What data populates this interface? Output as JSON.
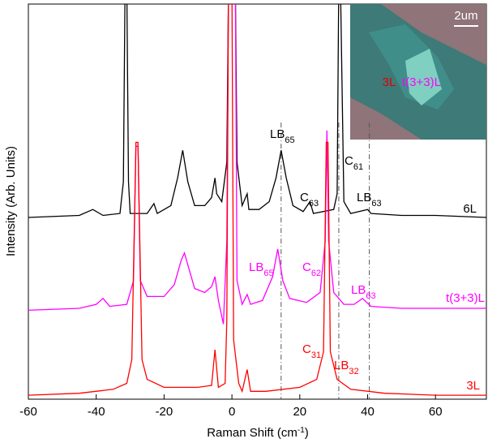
{
  "chart_data": {
    "type": "line",
    "xlabel": {
      "main": "Raman Shift (cm",
      "sup": "-1",
      "tail": ")"
    },
    "ylabel": "Intensity (Arb. Units)",
    "xlim": [
      -60,
      75
    ],
    "ylim": [
      0,
      100
    ],
    "xticks": [
      -60,
      -40,
      -20,
      0,
      20,
      40,
      60
    ],
    "reference_lines": [
      14.5,
      31.5,
      40.5
    ],
    "series": [
      {
        "name": "6L",
        "color": "#000000",
        "x": [
          -60,
          -45,
          -41,
          -38,
          -33,
          -32,
          -31.5,
          -31,
          -30.5,
          -30,
          -25,
          -23,
          -22,
          -18,
          -16,
          -14.5,
          -13,
          -11,
          -8,
          -6,
          -5,
          -4.5,
          -3,
          -1.5,
          -1,
          1,
          1.5,
          3,
          4.5,
          5,
          8,
          11,
          13,
          14.5,
          16,
          18,
          21,
          23,
          24,
          30,
          31,
          31.5,
          32,
          33,
          35,
          40,
          41,
          50,
          60,
          75
        ],
        "values": [
          46,
          46.5,
          48,
          46.5,
          47,
          55,
          105,
          105,
          55,
          47,
          47,
          49.5,
          47,
          49,
          56,
          63,
          55,
          49,
          49,
          51,
          56,
          52,
          50,
          60,
          105,
          105,
          60,
          49,
          52,
          48,
          48,
          50,
          56,
          63,
          56,
          49,
          47.5,
          50,
          47,
          48,
          52,
          105,
          105,
          50,
          47,
          48,
          47,
          46.5,
          46.5,
          46
        ]
      },
      {
        "name": "t(3+3)L",
        "color": "#ff00ff",
        "x": [
          -60,
          -45,
          -40,
          -38,
          -36,
          -31,
          -29,
          -28.3,
          -27.7,
          -27,
          -25,
          -20,
          -17,
          -15,
          -14,
          -13,
          -11,
          -8,
          -6,
          -5,
          -4,
          -2.5,
          -1.5,
          -1,
          1,
          1.5,
          3,
          4.5,
          5.5,
          9,
          12,
          13.5,
          15,
          17,
          22,
          26,
          27.5,
          28,
          28.5,
          30,
          33,
          36,
          38.5,
          41,
          50,
          60,
          75
        ],
        "values": [
          22.5,
          23,
          24,
          25.5,
          23.5,
          24,
          30,
          64,
          64,
          30,
          26,
          26,
          29,
          35,
          37,
          34,
          28,
          27,
          28.5,
          31,
          25,
          19,
          40,
          105,
          105,
          30,
          24,
          26.5,
          24,
          25,
          31,
          38,
          30,
          25.5,
          24.5,
          27,
          40,
          68,
          40,
          27,
          24,
          24,
          25.5,
          23.5,
          23,
          23,
          23
        ]
      },
      {
        "name": "3L",
        "color": "#ff0000",
        "x": [
          -60,
          -45,
          -35,
          -31,
          -29.5,
          -28.3,
          -27.7,
          -26.5,
          -25,
          -20,
          -10,
          -6,
          -5,
          -4,
          -2,
          -1.5,
          -1,
          0,
          0.5,
          2,
          3,
          4.5,
          5.5,
          10,
          20,
          25,
          27,
          27.8,
          28.3,
          29,
          31,
          35,
          45,
          60,
          75
        ],
        "values": [
          1,
          1.5,
          2.5,
          4,
          10,
          65,
          65,
          10,
          5,
          3,
          3,
          3.5,
          12.5,
          3,
          4,
          20,
          105,
          105,
          15,
          4,
          2,
          7.5,
          2,
          2,
          3,
          5,
          12,
          65,
          65,
          12,
          5,
          2.5,
          1.5,
          1,
          1
        ]
      }
    ],
    "annotations": [
      {
        "text": "LB",
        "sub": "65",
        "color": "#000000"
      },
      {
        "text": "C",
        "sub": "63",
        "color": "#000000"
      },
      {
        "text": "C",
        "sub": "61",
        "color": "#000000"
      },
      {
        "text": "LB",
        "sub": "63",
        "color": "#000000"
      },
      {
        "text": "LB",
        "sub": "65",
        "color": "#ff00ff"
      },
      {
        "text": "C",
        "sub": "62",
        "color": "#ff00ff"
      },
      {
        "text": "LB",
        "sub": "63",
        "color": "#ff00ff"
      },
      {
        "text": "C",
        "sub": "31",
        "color": "#ff0000"
      },
      {
        "text": "LB",
        "sub": "32",
        "color": "#ff0000"
      }
    ],
    "inset": {
      "scale": "2um",
      "label_a": "3L",
      "label_b": "t(3+3)L"
    }
  }
}
